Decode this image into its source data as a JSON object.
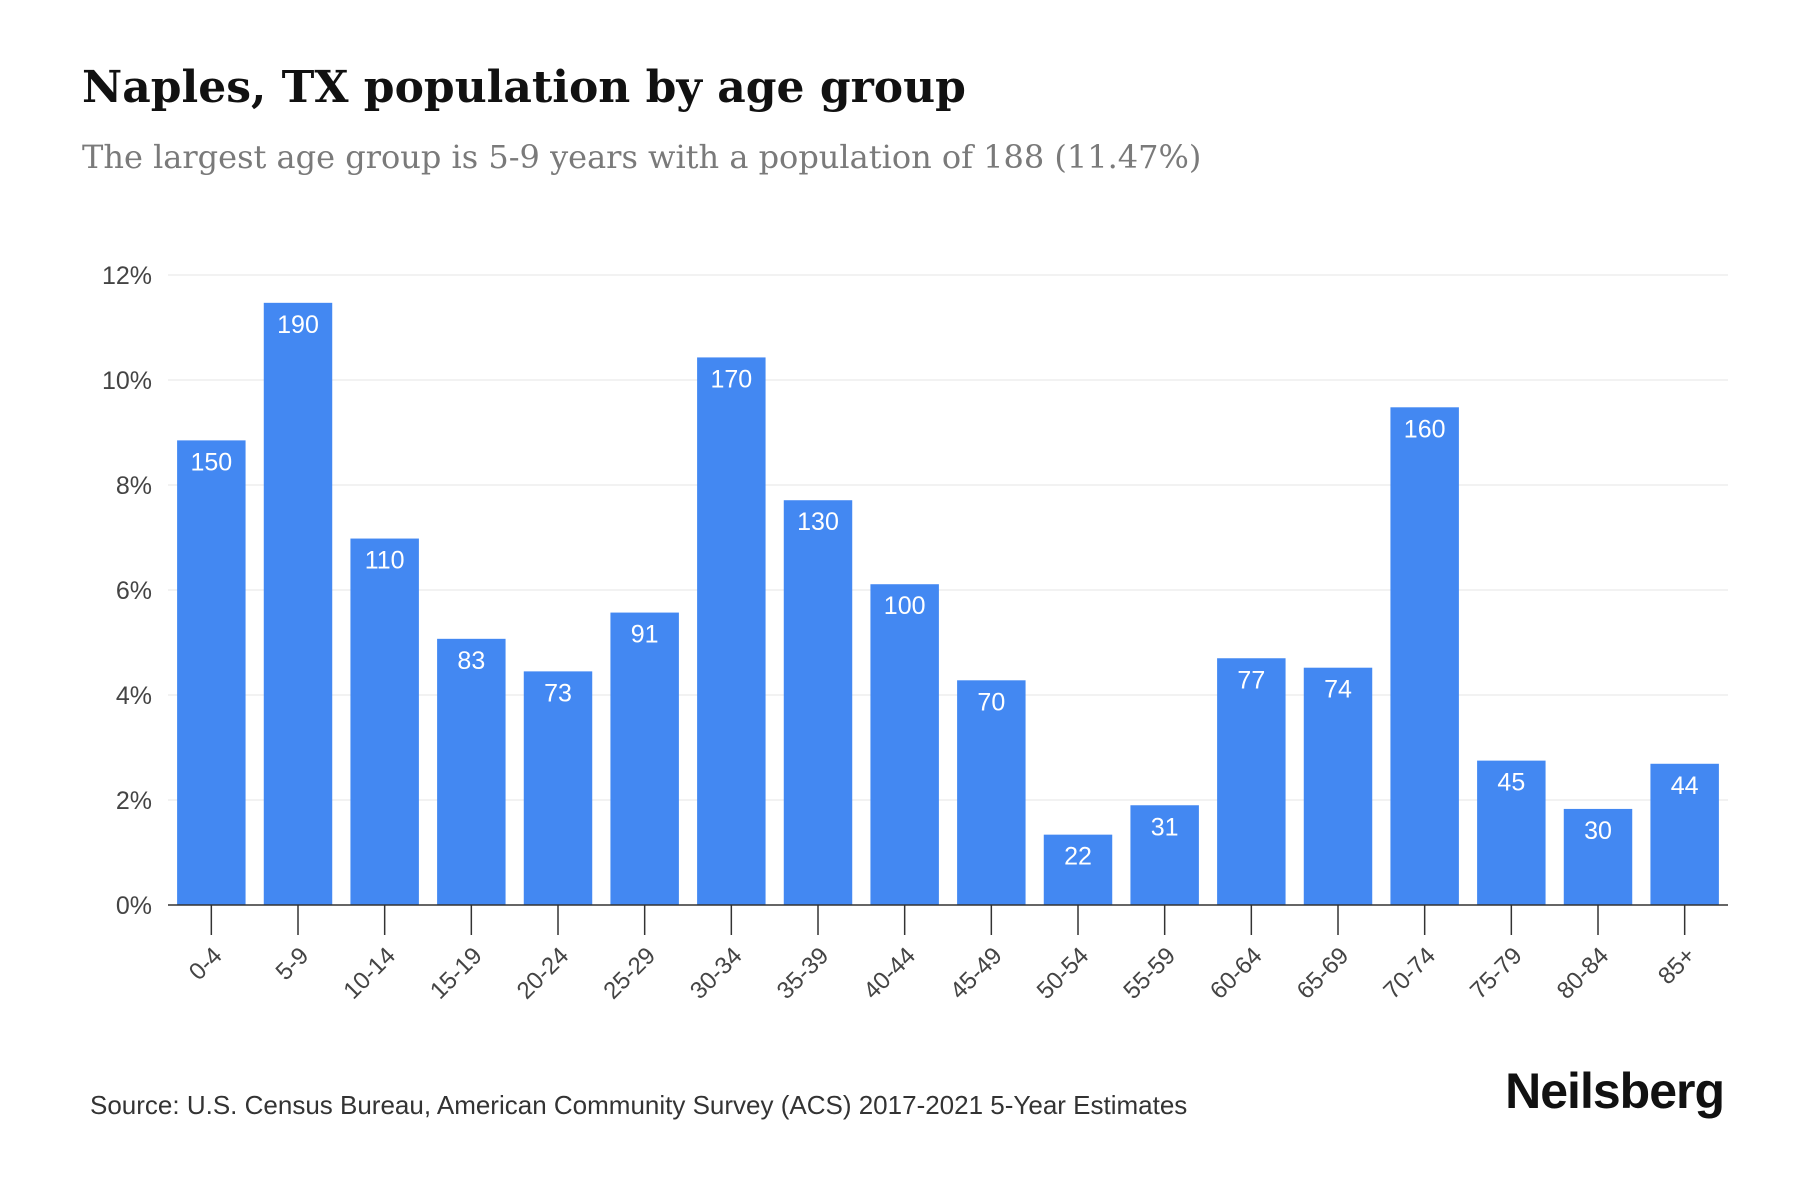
{
  "title": "Naples, TX population by age group",
  "subtitle": "The largest age group is 5-9 years with a population of 188 (11.47%)",
  "source": "Source: U.S. Census Bureau, American Community Survey (ACS) 2017-2021 5-Year Estimates",
  "brand": "Neilsberg",
  "colors": {
    "bar": "#4388f2",
    "bar_label": "#ffffff",
    "grid": "#ebebeb",
    "axis": "#333333",
    "tick_text": "#444444"
  },
  "chart_data": {
    "type": "bar",
    "title": "Naples, TX population by age group",
    "subtitle": "The largest age group is 5-9 years with a population of 188 (11.47%)",
    "categories": [
      "0-4",
      "5-9",
      "10-14",
      "15-19",
      "20-24",
      "25-29",
      "30-34",
      "35-39",
      "40-44",
      "45-49",
      "50-54",
      "55-59",
      "60-64",
      "65-69",
      "70-74",
      "75-79",
      "80-84",
      "85+"
    ],
    "values": [
      8.85,
      11.47,
      6.98,
      5.07,
      4.45,
      5.57,
      10.43,
      7.71,
      6.11,
      4.28,
      1.34,
      1.9,
      4.7,
      4.52,
      9.48,
      2.75,
      1.83,
      2.69
    ],
    "data_labels": [
      "150",
      "190",
      "110",
      "83",
      "73",
      "91",
      "170",
      "130",
      "100",
      "70",
      "22",
      "31",
      "77",
      "74",
      "160",
      "45",
      "30",
      "44"
    ],
    "ylim": [
      0,
      12
    ],
    "yticks": [
      0,
      2,
      4,
      6,
      8,
      10,
      12
    ],
    "ytick_labels": [
      "0%",
      "2%",
      "4%",
      "6%",
      "8%",
      "10%",
      "12%"
    ],
    "xlabel": "",
    "ylabel": "",
    "grid": true,
    "legend": "none"
  }
}
